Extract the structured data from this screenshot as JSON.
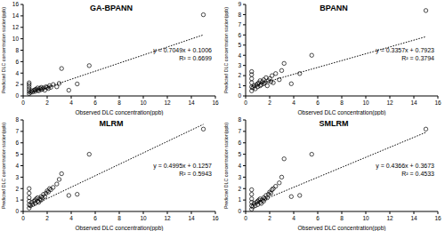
{
  "chart_data": [
    {
      "type": "scatter",
      "title": "GA-BPANN",
      "x_label": "Observed DLC concentration(ppb)",
      "y_label": "Predicted DLC concentration station(ppb)",
      "color": "#000000",
      "marker": "circle",
      "line_style": "dotted",
      "grid": false,
      "x": [
        0.5,
        0.5,
        0.5,
        0.5,
        0.5,
        0.5,
        0.6,
        0.7,
        0.8,
        0.9,
        1.0,
        1.0,
        1.1,
        1.2,
        1.2,
        1.3,
        1.4,
        1.5,
        1.5,
        1.6,
        1.7,
        1.8,
        1.9,
        2.0,
        2.1,
        2.2,
        2.3,
        2.5,
        2.8,
        3.0,
        3.2,
        3.8,
        4.5,
        5.5,
        15.0
      ],
      "values": [
        0.4,
        0.8,
        1.2,
        1.6,
        2.0,
        2.3,
        0.6,
        0.9,
        0.7,
        1.0,
        1.1,
        0.8,
        1.2,
        1.0,
        1.4,
        0.9,
        1.3,
        1.1,
        1.5,
        1.2,
        1.4,
        1.0,
        1.6,
        1.5,
        1.3,
        1.8,
        1.5,
        2.0,
        1.6,
        2.2,
        4.8,
        1.0,
        2.1,
        5.3,
        14.2
      ],
      "xlim": [
        0,
        16
      ],
      "xticks": [
        0,
        2,
        4,
        6,
        8,
        10,
        12,
        14,
        16
      ],
      "ylim": [
        0,
        16
      ],
      "yticks": [
        0,
        2,
        4,
        6,
        8,
        10,
        12,
        14,
        16
      ],
      "trendline": {
        "slope": 0.7049,
        "intercept": 0.1006
      },
      "annotations": [
        "y = 0.7049x + 0.1006",
        "R² = 0.6699"
      ]
    },
    {
      "type": "scatter",
      "title": "BPANN",
      "x_label": "Observed DLC concentration(ppb)",
      "y_label": "Predicted DLC concentration station(ppb)",
      "color": "#000000",
      "marker": "circle",
      "line_style": "dotted",
      "grid": false,
      "x": [
        0.5,
        0.5,
        0.5,
        0.5,
        0.5,
        0.5,
        0.6,
        0.7,
        0.8,
        0.9,
        1.0,
        1.0,
        1.1,
        1.2,
        1.2,
        1.3,
        1.4,
        1.5,
        1.5,
        1.6,
        1.7,
        1.8,
        1.9,
        2.0,
        2.1,
        2.2,
        2.3,
        2.5,
        2.8,
        3.0,
        3.2,
        3.8,
        4.5,
        5.5,
        15.0
      ],
      "values": [
        0.5,
        0.9,
        1.3,
        1.7,
        2.1,
        2.4,
        0.8,
        1.0,
        0.7,
        1.1,
        1.2,
        0.9,
        1.3,
        1.0,
        1.5,
        1.1,
        1.4,
        1.2,
        1.6,
        1.3,
        1.8,
        1.0,
        1.5,
        1.7,
        1.4,
        2.0,
        1.3,
        2.2,
        1.6,
        2.5,
        3.2,
        1.2,
        2.2,
        4.0,
        8.4
      ],
      "xlim": [
        0,
        16
      ],
      "xticks": [
        0,
        2,
        4,
        6,
        8,
        10,
        12,
        14,
        16
      ],
      "ylim": [
        0,
        9
      ],
      "yticks": [
        0,
        1,
        2,
        3,
        4,
        5,
        6,
        7,
        8,
        9
      ],
      "trendline": {
        "slope": 0.3357,
        "intercept": 0.7923
      },
      "annotations": [
        "y = 0.3357x + 0.7923",
        "R² = 0.3794"
      ]
    },
    {
      "type": "scatter",
      "title": "MLRM",
      "x_label": "Observed DLC concentration(ppb)",
      "y_label": "Predicted DLC concentration station(ppb)",
      "color": "#000000",
      "marker": "circle",
      "line_style": "dotted",
      "grid": false,
      "x": [
        0.5,
        0.5,
        0.5,
        0.5,
        0.5,
        0.5,
        0.6,
        0.7,
        0.8,
        0.9,
        1.0,
        1.0,
        1.1,
        1.2,
        1.2,
        1.3,
        1.4,
        1.5,
        1.5,
        1.6,
        1.7,
        1.8,
        1.9,
        2.0,
        2.1,
        2.2,
        2.3,
        2.5,
        2.8,
        3.0,
        3.2,
        3.8,
        4.5,
        5.5,
        15.0
      ],
      "values": [
        0.3,
        0.6,
        0.9,
        1.2,
        1.6,
        2.0,
        0.5,
        0.8,
        0.6,
        0.9,
        1.0,
        0.7,
        1.1,
        0.9,
        1.2,
        0.8,
        1.1,
        1.0,
        1.3,
        1.2,
        1.5,
        1.3,
        1.6,
        1.8,
        1.7,
        2.0,
        1.9,
        2.1,
        2.4,
        2.8,
        3.3,
        1.4,
        1.5,
        5.0,
        7.2
      ],
      "xlim": [
        0,
        16
      ],
      "xticks": [
        0,
        2,
        4,
        6,
        8,
        10,
        12,
        14,
        16
      ],
      "ylim": [
        0,
        8
      ],
      "yticks": [
        0,
        1,
        2,
        3,
        4,
        5,
        6,
        7,
        8
      ],
      "trendline": {
        "slope": 0.4995,
        "intercept": 0.1257
      },
      "annotations": [
        "y = 0.4995x + 0.1257",
        "R² = 0.5943"
      ]
    },
    {
      "type": "scatter",
      "title": "SMLRM",
      "x_label": "Observed DLC concentration(ppb)",
      "y_label": "Predicted DLC concentration station(ppb)",
      "color": "#000000",
      "marker": "circle",
      "line_style": "dotted",
      "grid": false,
      "x": [
        0.5,
        0.5,
        0.5,
        0.5,
        0.5,
        0.5,
        0.6,
        0.7,
        0.8,
        0.9,
        1.0,
        1.0,
        1.1,
        1.2,
        1.2,
        1.3,
        1.4,
        1.5,
        1.5,
        1.6,
        1.7,
        1.8,
        1.9,
        2.0,
        2.1,
        2.2,
        2.3,
        2.5,
        2.8,
        3.0,
        3.2,
        3.8,
        4.5,
        5.5,
        15.0
      ],
      "values": [
        0.2,
        0.5,
        0.8,
        1.1,
        1.5,
        1.9,
        0.4,
        0.7,
        0.5,
        0.8,
        0.9,
        0.6,
        1.0,
        0.8,
        1.1,
        0.7,
        1.0,
        0.9,
        1.2,
        1.1,
        1.4,
        1.2,
        1.5,
        1.7,
        1.6,
        1.9,
        2.0,
        2.2,
        2.5,
        3.0,
        4.6,
        1.3,
        1.4,
        5.0,
        7.2
      ],
      "xlim": [
        0,
        16
      ],
      "xticks": [
        0,
        2,
        4,
        6,
        8,
        10,
        12,
        14,
        16
      ],
      "ylim": [
        0,
        8
      ],
      "yticks": [
        0,
        1,
        2,
        3,
        4,
        5,
        6,
        7,
        8
      ],
      "trendline": {
        "slope": 0.4366,
        "intercept": 0.3673
      },
      "annotations": [
        "y = 0.4366x + 0.3673",
        "R² = 0.4533"
      ]
    }
  ]
}
